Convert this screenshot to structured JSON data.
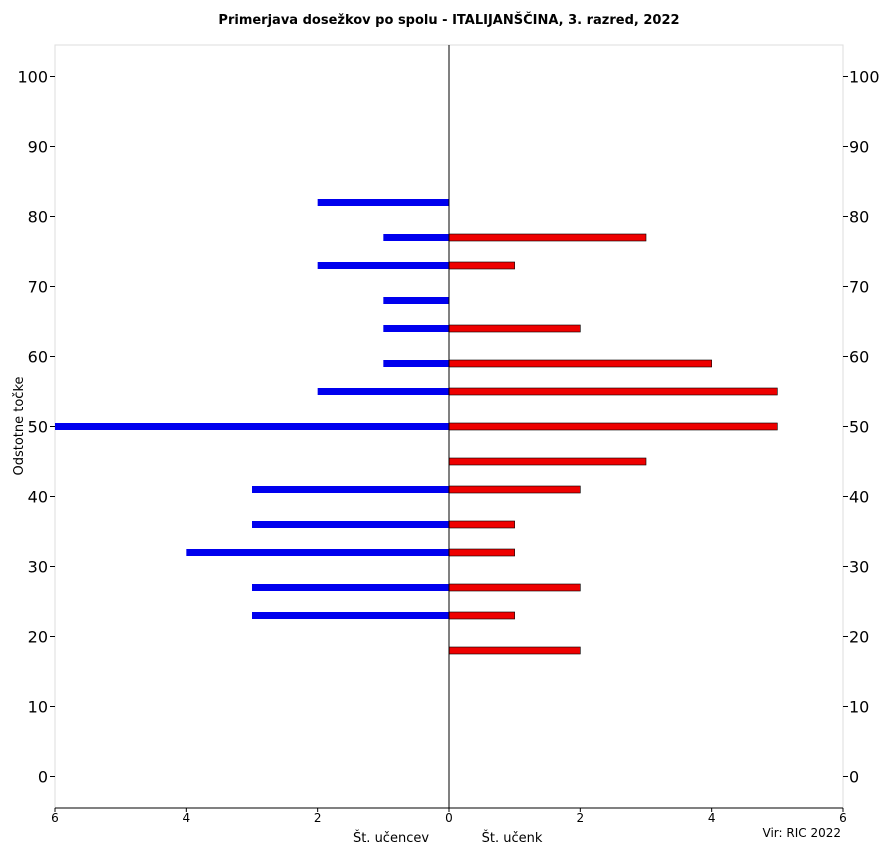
{
  "chart_data": {
    "type": "bar",
    "orientation": "horizontal",
    "title": "Primerjava dosežkov po spolu - ITALIJANŠČINA, 3. razred, 2022",
    "ylabel": "Odstotne točke",
    "ylim": [
      -4.5,
      104.5
    ],
    "yticks": [
      0,
      10,
      20,
      30,
      40,
      50,
      60,
      70,
      80,
      90,
      100
    ],
    "xlim": [
      -6,
      6
    ],
    "xticks": [
      -6,
      -4,
      -2,
      0,
      2,
      4,
      6
    ],
    "xtick_labels": [
      "6",
      "4",
      "2",
      "0",
      "2",
      "4",
      "6"
    ],
    "xlabel_left": "Št. učencev",
    "xlabel_right": "Št. učenk",
    "source": "Vir: RIC 2022",
    "grid": false,
    "series": [
      {
        "color": "#0000ee",
        "side": "left",
        "points": [
          {
            "y": 82,
            "value": 2
          },
          {
            "y": 77,
            "value": 1
          },
          {
            "y": 73,
            "value": 2
          },
          {
            "y": 68,
            "value": 1
          },
          {
            "y": 64,
            "value": 1
          },
          {
            "y": 59,
            "value": 1
          },
          {
            "y": 55,
            "value": 2
          },
          {
            "y": 50,
            "value": 6
          },
          {
            "y": 41,
            "value": 3
          },
          {
            "y": 36,
            "value": 3
          },
          {
            "y": 32,
            "value": 4
          },
          {
            "y": 27,
            "value": 3
          },
          {
            "y": 23,
            "value": 3
          }
        ]
      },
      {
        "color": "#ee0000",
        "side": "right",
        "points": [
          {
            "y": 77,
            "value": 3
          },
          {
            "y": 73,
            "value": 1
          },
          {
            "y": 64,
            "value": 2
          },
          {
            "y": 59,
            "value": 4
          },
          {
            "y": 55,
            "value": 5
          },
          {
            "y": 50,
            "value": 5
          },
          {
            "y": 45,
            "value": 3
          },
          {
            "y": 41,
            "value": 2
          },
          {
            "y": 36,
            "value": 1
          },
          {
            "y": 32,
            "value": 1
          },
          {
            "y": 27,
            "value": 2
          },
          {
            "y": 23,
            "value": 1
          },
          {
            "y": 18,
            "value": 2
          }
        ]
      }
    ]
  }
}
